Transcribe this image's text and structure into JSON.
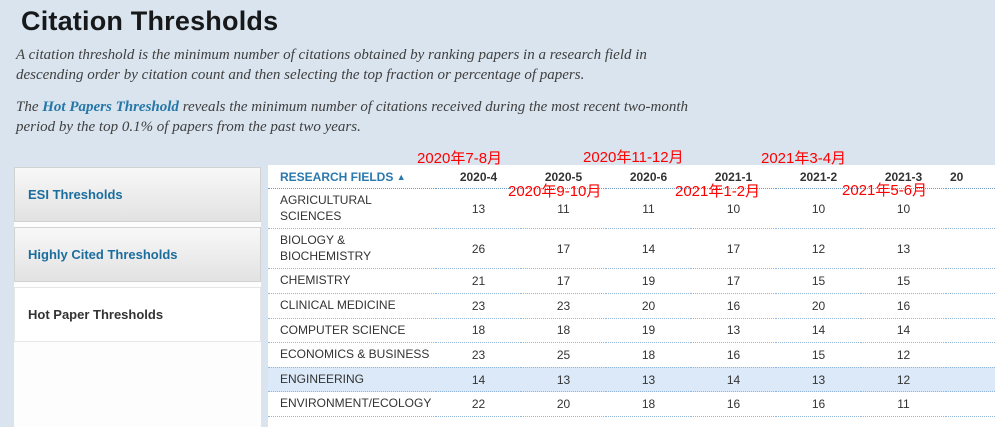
{
  "page": {
    "title": "Citation Thresholds",
    "intro": "A citation threshold is the minimum number of citations obtained by ranking papers in a research field in descending order by citation count and then selecting the top fraction or percentage of papers.",
    "hot_prefix": "The ",
    "hot_link": "Hot Papers Threshold",
    "hot_suffix": " reveals the minimum number of citations received during the most recent two-month period by the top 0.1% of papers from the past two years."
  },
  "annotations": [
    "2020年7-8月",
    "2020年11-12月",
    "2021年3-4月",
    "2020年9-10月",
    "2021年1-2月",
    "2021年5-6月"
  ],
  "sidebar": {
    "items": [
      {
        "label": "ESI Thresholds",
        "active": false
      },
      {
        "label": "Highly Cited Thresholds",
        "active": false
      },
      {
        "label": "Hot Paper Thresholds",
        "active": true
      }
    ]
  },
  "table": {
    "first_header": "RESEARCH FIELDS",
    "sort_icon": "▲",
    "columns": [
      "2020-4",
      "2020-5",
      "2020-6",
      "2021-1",
      "2021-2",
      "2021-3",
      "20"
    ],
    "rows": [
      {
        "field": "AGRICULTURAL SCIENCES",
        "values": [
          13,
          11,
          11,
          10,
          10,
          10
        ],
        "highlight": false
      },
      {
        "field": "BIOLOGY & BIOCHEMISTRY",
        "values": [
          26,
          17,
          14,
          17,
          12,
          13
        ],
        "highlight": false
      },
      {
        "field": "CHEMISTRY",
        "values": [
          21,
          17,
          19,
          17,
          15,
          15
        ],
        "highlight": false
      },
      {
        "field": "CLINICAL MEDICINE",
        "values": [
          23,
          23,
          20,
          16,
          20,
          16
        ],
        "highlight": false
      },
      {
        "field": "COMPUTER SCIENCE",
        "values": [
          18,
          18,
          19,
          13,
          14,
          14
        ],
        "highlight": false
      },
      {
        "field": "ECONOMICS & BUSINESS",
        "values": [
          23,
          25,
          18,
          16,
          15,
          12
        ],
        "highlight": false
      },
      {
        "field": "ENGINEERING",
        "values": [
          14,
          13,
          13,
          14,
          13,
          12
        ],
        "highlight": true
      },
      {
        "field": "ENVIRONMENT/ECOLOGY",
        "values": [
          22,
          20,
          18,
          16,
          16,
          11
        ],
        "highlight": false
      }
    ]
  }
}
